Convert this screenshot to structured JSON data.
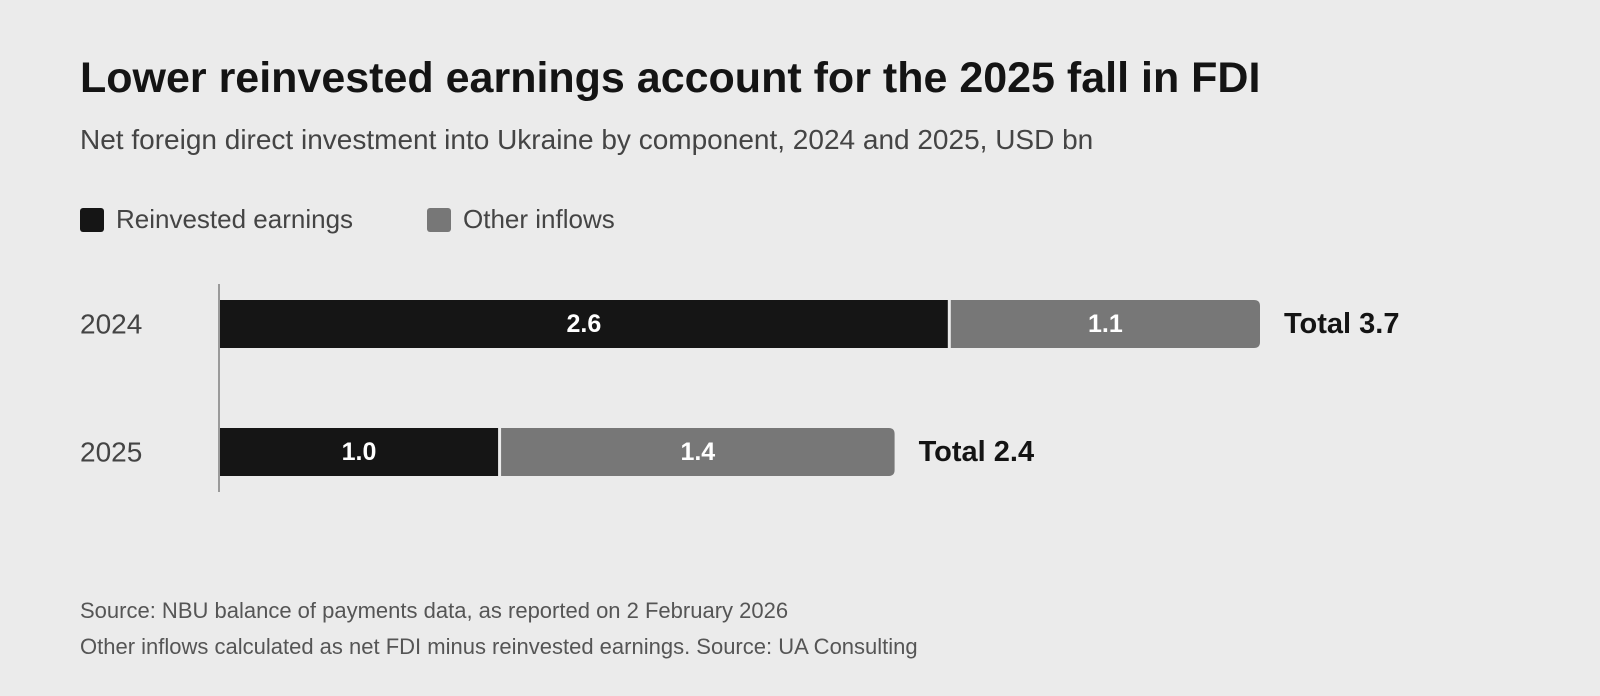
{
  "title": "Lower reinvested earnings account for the 2025 fall in FDI",
  "subtitle": "Net foreign direct investment into Ukraine by component, 2024 and 2025, USD bn",
  "legend": [
    {
      "label": "Reinvested earnings",
      "color": "#151515"
    },
    {
      "label": "Other inflows",
      "color": "#777777"
    }
  ],
  "notes": [
    "Source: NBU balance of payments data, as reported on 2 February 2026",
    "Other inflows calculated as net FDI minus reinvested earnings. Source: UA Consulting"
  ],
  "chart_data": {
    "type": "bar",
    "orientation": "horizontal",
    "stacked": true,
    "categories": [
      "2024",
      "2025"
    ],
    "series": [
      {
        "name": "Reinvested earnings",
        "values": [
          2.6,
          1.0
        ],
        "color": "#151515"
      },
      {
        "name": "Other inflows",
        "values": [
          1.1,
          1.4
        ],
        "color": "#777777"
      }
    ],
    "value_labels": [
      [
        "2.6",
        "1.0"
      ],
      [
        "1.1",
        "1.4"
      ]
    ],
    "totals": [
      "Total 3.7",
      "Total 2.4"
    ],
    "xlim": [
      0,
      3.7
    ],
    "grid": false,
    "legend_position": "top-left"
  }
}
